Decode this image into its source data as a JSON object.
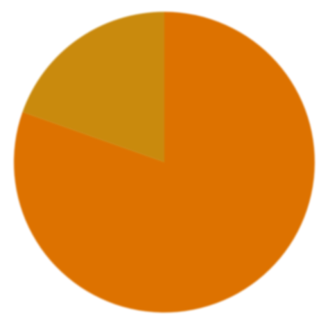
{
  "chart_data": {
    "type": "pie",
    "title": "",
    "slices": [
      {
        "value": 80.4,
        "color": "#dd7200"
      },
      {
        "value": 19.6,
        "color": "#c98a0c"
      }
    ],
    "start_angle_deg": 0,
    "direction": "clockwise",
    "legend": "none"
  }
}
